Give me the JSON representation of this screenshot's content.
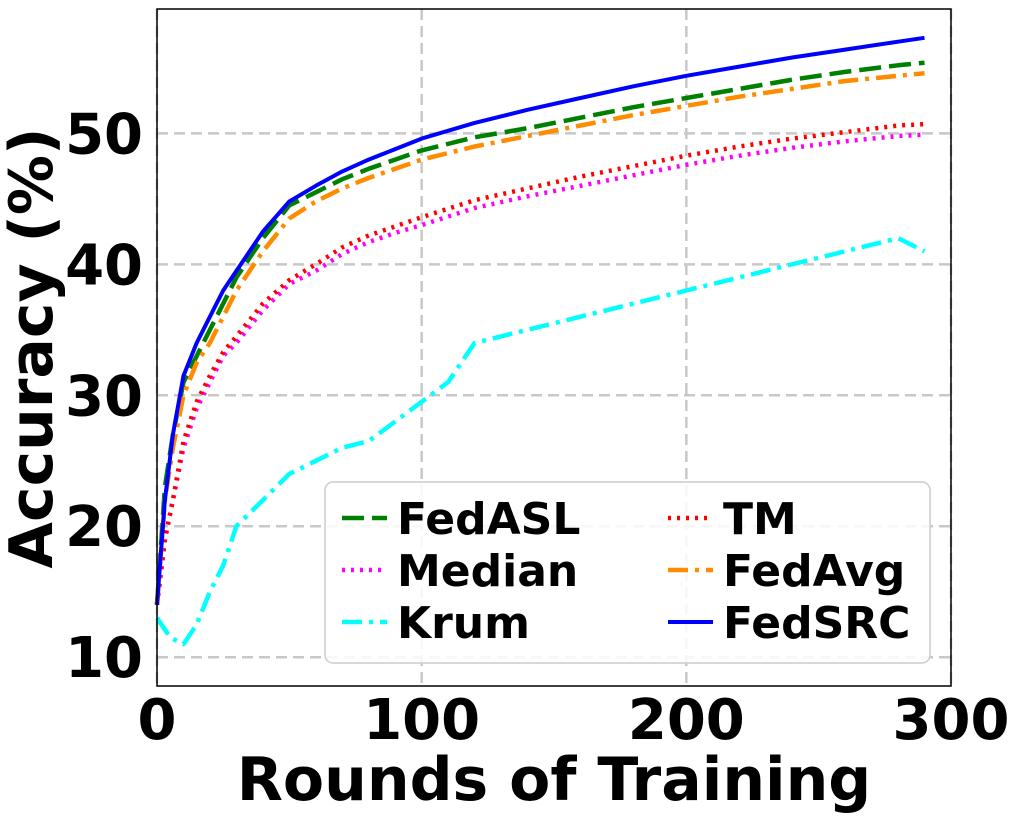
{
  "chart_data": {
    "type": "line",
    "xlabel": "Rounds of Training",
    "ylabel": "Accuracy (%)",
    "xlim": [
      0,
      300
    ],
    "ylim": [
      7.8,
      59.5
    ],
    "xticks": [
      0,
      100,
      200,
      300
    ],
    "yticks": [
      10,
      20,
      30,
      40,
      50
    ],
    "grid": true,
    "legend_position": "bottom-right",
    "legend_columns": 2,
    "series": [
      {
        "name": "FedASL",
        "color": "#008000",
        "style": "dashed",
        "x": [
          0,
          3,
          6,
          10,
          15,
          20,
          25,
          30,
          40,
          50,
          60,
          70,
          80,
          90,
          100,
          120,
          140,
          160,
          180,
          200,
          220,
          240,
          260,
          280,
          290
        ],
        "y": [
          14,
          23,
          27,
          31,
          33,
          35,
          37,
          39,
          42,
          44.5,
          45.5,
          46.5,
          47.3,
          48,
          48.7,
          49.7,
          50.4,
          51.2,
          52,
          52.7,
          53.4,
          54.1,
          54.7,
          55.2,
          55.4
        ]
      },
      {
        "name": "Median",
        "color": "#ff00ff",
        "style": "dotted",
        "x": [
          0,
          3,
          6,
          10,
          15,
          20,
          25,
          30,
          40,
          50,
          60,
          70,
          80,
          90,
          100,
          120,
          140,
          160,
          180,
          200,
          220,
          240,
          260,
          280,
          290
        ],
        "y": [
          14,
          19,
          22,
          26,
          29,
          31,
          33,
          34,
          36.5,
          38.5,
          39.5,
          40.8,
          41.7,
          42.4,
          43,
          44.3,
          45.2,
          46,
          46.8,
          47.6,
          48.3,
          48.9,
          49.4,
          49.8,
          49.9
        ]
      },
      {
        "name": "Krum",
        "color": "#00ffff",
        "style": "dashdot",
        "x": [
          0,
          5,
          10,
          15,
          20,
          25,
          30,
          40,
          50,
          60,
          70,
          80,
          90,
          100,
          110,
          120,
          140,
          160,
          180,
          200,
          220,
          240,
          260,
          280,
          290
        ],
        "y": [
          13,
          11.5,
          11,
          12.5,
          15,
          17,
          20,
          22,
          24,
          25,
          26,
          26.5,
          28,
          29.5,
          31,
          34,
          35,
          36,
          37,
          38,
          39,
          40,
          41,
          42,
          41
        ]
      },
      {
        "name": "TM",
        "color": "#ff0000",
        "style": "dotted",
        "x": [
          0,
          3,
          6,
          10,
          15,
          20,
          25,
          30,
          40,
          50,
          60,
          70,
          80,
          90,
          100,
          120,
          140,
          160,
          180,
          200,
          220,
          240,
          260,
          280,
          290
        ],
        "y": [
          14,
          19,
          22,
          26.5,
          29.5,
          31.5,
          33.3,
          34.5,
          37,
          38.8,
          40,
          41.3,
          42.2,
          42.9,
          43.6,
          44.9,
          45.8,
          46.7,
          47.5,
          48.3,
          49,
          49.6,
          50.1,
          50.6,
          50.7
        ]
      },
      {
        "name": "FedAvg",
        "color": "#ff8c00",
        "style": "dashdot",
        "x": [
          0,
          3,
          6,
          10,
          15,
          20,
          25,
          30,
          40,
          50,
          60,
          70,
          80,
          90,
          100,
          120,
          140,
          160,
          180,
          200,
          220,
          240,
          260,
          280,
          290
        ],
        "y": [
          14,
          22,
          26,
          30,
          32.5,
          34,
          36,
          38,
          41,
          43.5,
          44.8,
          45.8,
          46.6,
          47.3,
          48,
          49,
          49.8,
          50.6,
          51.4,
          52.1,
          52.8,
          53.4,
          54,
          54.4,
          54.6
        ]
      },
      {
        "name": "FedSRC",
        "color": "#0000ff",
        "style": "solid",
        "x": [
          0,
          3,
          6,
          10,
          15,
          20,
          25,
          30,
          40,
          50,
          60,
          70,
          80,
          90,
          100,
          120,
          140,
          160,
          180,
          200,
          220,
          240,
          260,
          280,
          290
        ],
        "y": [
          14,
          22,
          27,
          31.5,
          34,
          36,
          38,
          39.5,
          42.5,
          44.8,
          46,
          47.1,
          48,
          48.8,
          49.6,
          50.8,
          51.8,
          52.7,
          53.6,
          54.4,
          55.1,
          55.8,
          56.4,
          57,
          57.3
        ]
      }
    ]
  }
}
